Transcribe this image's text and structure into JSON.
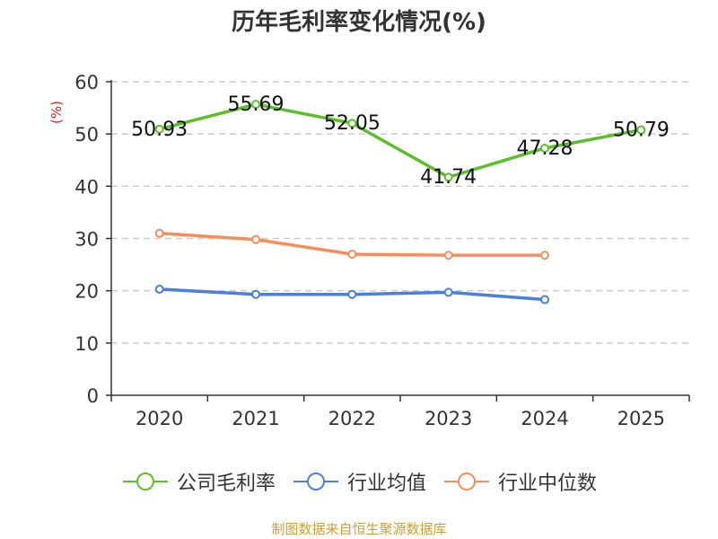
{
  "chart_data": {
    "type": "line",
    "title": "历年毛利率变化情况(%)",
    "ylabel": "(%)",
    "xlabel": "",
    "ylim": [
      0,
      60
    ],
    "yticks": [
      0,
      10,
      20,
      30,
      40,
      50,
      60
    ],
    "categories": [
      "2020",
      "2021",
      "2022",
      "2023",
      "2024",
      "2025"
    ],
    "series": [
      {
        "name": "公司毛利率",
        "color": "#5cbf2a",
        "values": [
          50.93,
          55.69,
          52.05,
          41.74,
          47.28,
          50.79
        ],
        "labels": [
          "50.93",
          "55.69",
          "52.05",
          "41.74",
          "47.28",
          "50.79"
        ]
      },
      {
        "name": "行业均值",
        "color": "#4a7fdc",
        "values": [
          20.3,
          19.3,
          19.3,
          19.7,
          18.3,
          null
        ]
      },
      {
        "name": "行业中位数",
        "color": "#f78e5a",
        "values": [
          31.0,
          29.8,
          27.0,
          26.8,
          26.8,
          null
        ]
      }
    ],
    "grid": true,
    "legend_position": "bottom"
  },
  "source_note": "制图数据来自恒生聚源数据库",
  "colors": {
    "source_note": "#c9a13a",
    "ylabel": "#e02020",
    "axis": "#333333",
    "grid": "#cccccc"
  }
}
